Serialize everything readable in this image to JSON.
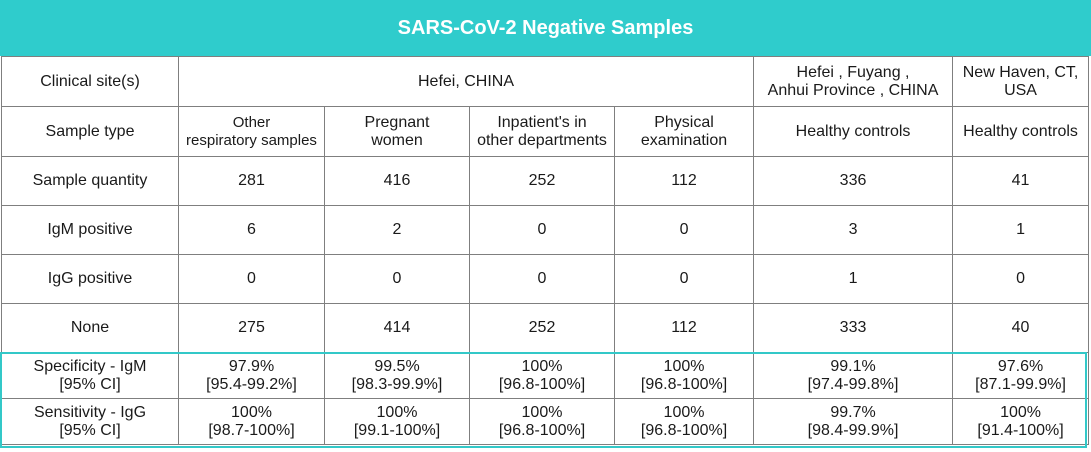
{
  "title": "SARS-CoV-2 Negative Samples",
  "rows": {
    "site_label": "Clinical site(s)",
    "sites": [
      {
        "text": "Hefei, CHINA"
      },
      {
        "line1": "Hefei , Fuyang ,",
        "line2": "Anhui Province , CHINA"
      },
      {
        "line1": "New Haven, CT,",
        "line2": "USA"
      }
    ],
    "type_label": "Sample type",
    "types": [
      {
        "line1": "Other",
        "line2": "respiratory samples"
      },
      {
        "line1": "Pregnant",
        "line2": "women"
      },
      {
        "line1": "Inpatient's in",
        "line2": "other departments"
      },
      {
        "line1": "Physical",
        "line2": "examination"
      },
      {
        "line1": "Healthy controls",
        "line2": ""
      },
      {
        "line1": "Healthy controls",
        "line2": ""
      }
    ],
    "data": [
      {
        "label": "Sample quantity",
        "values": [
          "281",
          "416",
          "252",
          "112",
          "336",
          "41"
        ]
      },
      {
        "label": "IgM positive",
        "values": [
          "6",
          "2",
          "0",
          "0",
          "3",
          "1"
        ]
      },
      {
        "label": "IgG positive",
        "values": [
          "0",
          "0",
          "0",
          "0",
          "1",
          "0"
        ]
      },
      {
        "label": "None",
        "values": [
          "275",
          "414",
          "252",
          "112",
          "333",
          "40"
        ]
      }
    ],
    "stats": [
      {
        "label1": "Specificity - IgM",
        "label2": "[95% CI]",
        "values": [
          [
            "97.9%",
            "[95.4-99.2%]"
          ],
          [
            "99.5%",
            "[98.3-99.9%]"
          ],
          [
            "100%",
            "[96.8-100%]"
          ],
          [
            "100%",
            "[96.8-100%]"
          ],
          [
            "99.1%",
            "[97.4-99.8%]"
          ],
          [
            "97.6%",
            "[87.1-99.9%]"
          ]
        ]
      },
      {
        "label1": "Sensitivity - IgG",
        "label2": "[95% CI]",
        "values": [
          [
            "100%",
            "[98.7-100%]"
          ],
          [
            "100%",
            "[99.1-100%]"
          ],
          [
            "100%",
            "[96.8-100%]"
          ],
          [
            "100%",
            "[96.8-100%]"
          ],
          [
            "99.7%",
            "[98.4-99.9%]"
          ],
          [
            "100%",
            "[91.4-100%]"
          ]
        ]
      }
    ]
  },
  "colors": {
    "header_bg": "#2fcccc",
    "highlight_border": "#33c8c8"
  }
}
